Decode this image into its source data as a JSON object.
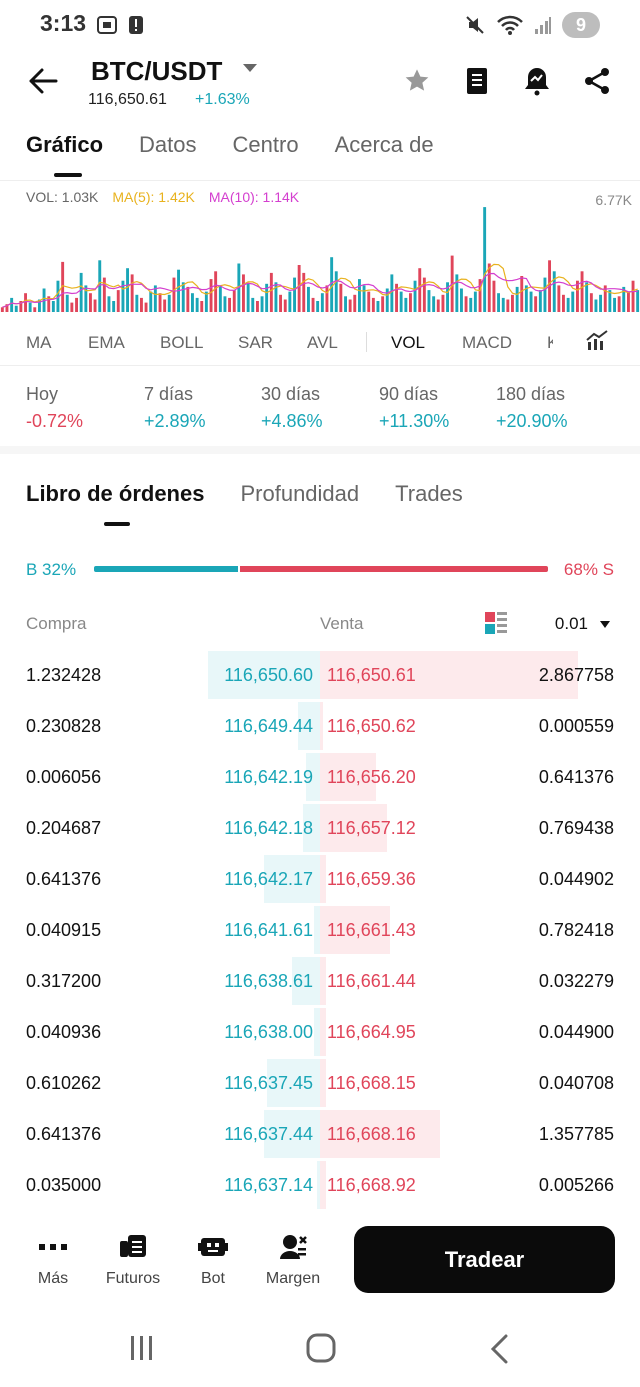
{
  "status_bar": {
    "time": "3:13",
    "notifications": "9"
  },
  "header": {
    "pair": "BTC/USDT",
    "price": "116,650.61",
    "change": "+1.63%",
    "icons": [
      "back-arrow-icon",
      "star-icon",
      "notebook-icon",
      "price-alert-icon",
      "share-icon"
    ]
  },
  "main_tabs": [
    "Gráfico",
    "Datos",
    "Centro",
    "Acerca de"
  ],
  "chart": {
    "legend": {
      "vol": "VOL: 1.03K",
      "ma5": "MA(5): 1.42K",
      "ma10": "MA(10): 1.14K"
    },
    "max_label": "6.77K",
    "colors": {
      "up": "#1aa6b7",
      "down": "#e0455a",
      "ma5": "#e8b21e",
      "ma10": "#d43fcf"
    }
  },
  "chart_data": {
    "type": "bar",
    "ylim": [
      0,
      6770
    ],
    "series": [
      {
        "name": "VOL",
        "values": [
          300,
          500,
          900,
          400,
          700,
          1200,
          600,
          300,
          800,
          1500,
          1000,
          700,
          2000,
          3200,
          1100,
          600,
          900,
          2500,
          1700,
          1200,
          800,
          3300,
          2200,
          1000,
          700,
          1400,
          2000,
          2800,
          2400,
          1100,
          900,
          600,
          1300,
          1700,
          1200,
          800,
          1100,
          2200,
          2700,
          1900,
          1600,
          1200,
          900,
          700,
          1300,
          2100,
          2600,
          1700,
          1000,
          900,
          1400,
          3100,
          2400,
          1800,
          900,
          700,
          1000,
          1800,
          2500,
          1900,
          1100,
          800,
          1300,
          2200,
          3000,
          2500,
          1600,
          900,
          700,
          1200,
          1700,
          3500,
          2600,
          1800,
          1000,
          800,
          1100,
          2100,
          1700,
          1300,
          900,
          700,
          1000,
          1500,
          2400,
          1800,
          1300,
          900,
          1200,
          2000,
          2800,
          2200,
          1400,
          1000,
          800,
          1100,
          1900,
          3600,
          2400,
          1500,
          1000,
          900,
          1300,
          2100,
          6700,
          3100,
          2000,
          1200,
          900,
          800,
          1100,
          1600,
          2300,
          1700,
          1300,
          1000,
          1400,
          2200,
          3300,
          2600,
          1700,
          1100,
          900,
          1300,
          2000,
          2600,
          1900,
          1200,
          800,
          1100,
          1700,
          1400,
          900,
          1000,
          1600,
          1300,
          2000,
          1400
        ]
      }
    ]
  },
  "indicator_tabs": [
    "MA",
    "EMA",
    "BOLL",
    "SAR",
    "AVL",
    "VOL",
    "MACD",
    "K"
  ],
  "periods": [
    {
      "label": "Hoy",
      "value": "-0.72%"
    },
    {
      "label": "7 días",
      "value": "+2.89%"
    },
    {
      "label": "30 días",
      "value": "+4.86%"
    },
    {
      "label": "90 días",
      "value": "+11.30%"
    },
    {
      "label": "180 días",
      "value": "+20.90%"
    }
  ],
  "orderbook_tabs": [
    "Libro de órdenes",
    "Profundidad",
    "Trades"
  ],
  "ratio": {
    "buy": "B 32%",
    "sell": "68% S",
    "buy_fraction": 0.32
  },
  "columns": {
    "buy": "Compra",
    "sell": "Venta",
    "precision": "0.01"
  },
  "rows": [
    {
      "bid_qty": "1.232428",
      "bid": "116,650.60",
      "ask": "116,650.61",
      "ask_qty": "2.867758",
      "bid_depth": 0.4,
      "ask_depth": 0.92
    },
    {
      "bid_qty": "0.230828",
      "bid": "116,649.44",
      "ask": "116,650.62",
      "ask_qty": "0.000559",
      "bid_depth": 0.08,
      "ask_depth": 0.01
    },
    {
      "bid_qty": "0.006056",
      "bid": "116,642.19",
      "ask": "116,656.20",
      "ask_qty": "0.641376",
      "bid_depth": 0.05,
      "ask_depth": 0.2
    },
    {
      "bid_qty": "0.204687",
      "bid": "116,642.18",
      "ask": "116,657.12",
      "ask_qty": "0.769438",
      "bid_depth": 0.06,
      "ask_depth": 0.24
    },
    {
      "bid_qty": "0.641376",
      "bid": "116,642.17",
      "ask": "116,659.36",
      "ask_qty": "0.044902",
      "bid_depth": 0.2,
      "ask_depth": 0.02
    },
    {
      "bid_qty": "0.040915",
      "bid": "116,641.61",
      "ask": "116,661.43",
      "ask_qty": "0.782418",
      "bid_depth": 0.02,
      "ask_depth": 0.25
    },
    {
      "bid_qty": "0.317200",
      "bid": "116,638.61",
      "ask": "116,661.44",
      "ask_qty": "0.032279",
      "bid_depth": 0.1,
      "ask_depth": 0.02
    },
    {
      "bid_qty": "0.040936",
      "bid": "116,638.00",
      "ask": "116,664.95",
      "ask_qty": "0.044900",
      "bid_depth": 0.02,
      "ask_depth": 0.02
    },
    {
      "bid_qty": "0.610262",
      "bid": "116,637.45",
      "ask": "116,668.15",
      "ask_qty": "0.040708",
      "bid_depth": 0.19,
      "ask_depth": 0.02
    },
    {
      "bid_qty": "0.641376",
      "bid": "116,637.44",
      "ask": "116,668.16",
      "ask_qty": "1.357785",
      "bid_depth": 0.2,
      "ask_depth": 0.43
    },
    {
      "bid_qty": "0.035000",
      "bid": "116,637.14",
      "ask": "116,668.92",
      "ask_qty": "0.005266",
      "bid_depth": 0.01,
      "ask_depth": 0.02
    }
  ],
  "bottom_bar": {
    "items": [
      {
        "label": "Más",
        "icon": "more-dots-icon"
      },
      {
        "label": "Futuros",
        "icon": "futures-icon"
      },
      {
        "label": "Bot",
        "icon": "bot-icon"
      },
      {
        "label": "Margen",
        "icon": "margin-icon"
      }
    ],
    "trade_label": "Tradear"
  }
}
